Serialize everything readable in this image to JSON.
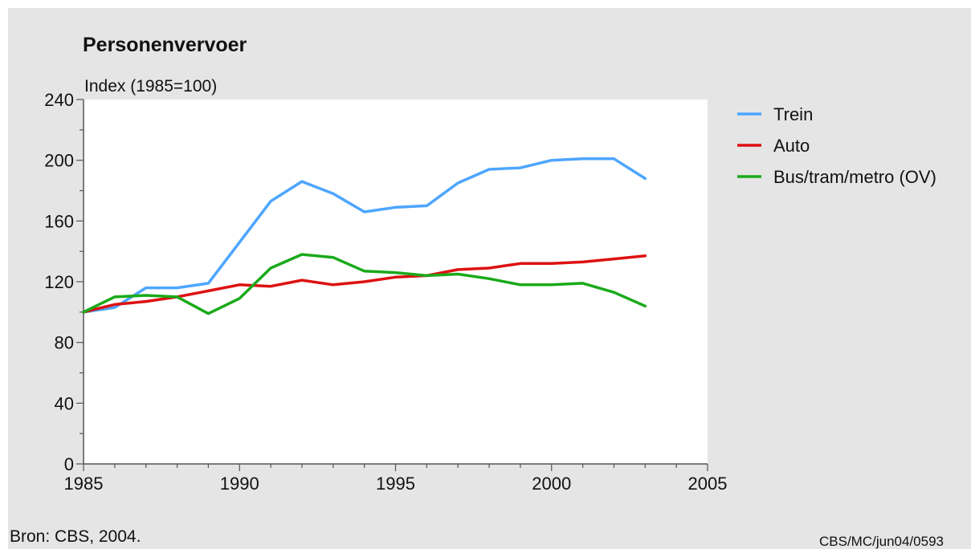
{
  "colors": {
    "background": "#e5e5e5",
    "plot_area": "#ffffff",
    "axis": "#555555"
  },
  "chart_data": {
    "type": "line",
    "title": "Personenvervoer",
    "ylabel": "Index (1985=100)",
    "xlabel": "",
    "xlim": [
      1985,
      2005
    ],
    "ylim": [
      0,
      240
    ],
    "x_ticks": [
      1985,
      1990,
      1995,
      2000,
      2005
    ],
    "y_ticks": [
      0,
      40,
      80,
      120,
      160,
      200,
      240
    ],
    "y_tick_labels": [
      "0",
      "40",
      "80",
      "120",
      "160",
      "200",
      "240"
    ],
    "x_tick_labels": [
      "1985",
      "1990",
      "1995",
      "2000",
      "2005"
    ],
    "x": [
      1985,
      1986,
      1987,
      1988,
      1989,
      1990,
      1991,
      1992,
      1993,
      1994,
      1995,
      1996,
      1997,
      1998,
      1999,
      2000,
      2001,
      2002,
      2003
    ],
    "series": [
      {
        "name": "Trein",
        "color": "#4da6ff",
        "values": [
          100,
          103,
          116,
          116,
          119,
          146,
          173,
          186,
          178,
          166,
          169,
          170,
          185,
          194,
          195,
          200,
          201,
          201,
          188
        ]
      },
      {
        "name": "Auto",
        "color": "#dd1111",
        "values": [
          100,
          105,
          107,
          110,
          114,
          118,
          117,
          121,
          118,
          120,
          123,
          124,
          128,
          129,
          132,
          132,
          133,
          135,
          137
        ]
      },
      {
        "name": "Bus/tram/metro (OV)",
        "color": "#1aaa1a",
        "values": [
          100,
          110,
          111,
          110,
          99,
          109,
          129,
          138,
          136,
          127,
          126,
          124,
          125,
          122,
          118,
          118,
          119,
          113,
          104
        ]
      }
    ],
    "legend_position": "right",
    "grid": false
  },
  "footer": {
    "source": "Bron: CBS, 2004.",
    "code": "CBS/MC/jun04/0593"
  }
}
